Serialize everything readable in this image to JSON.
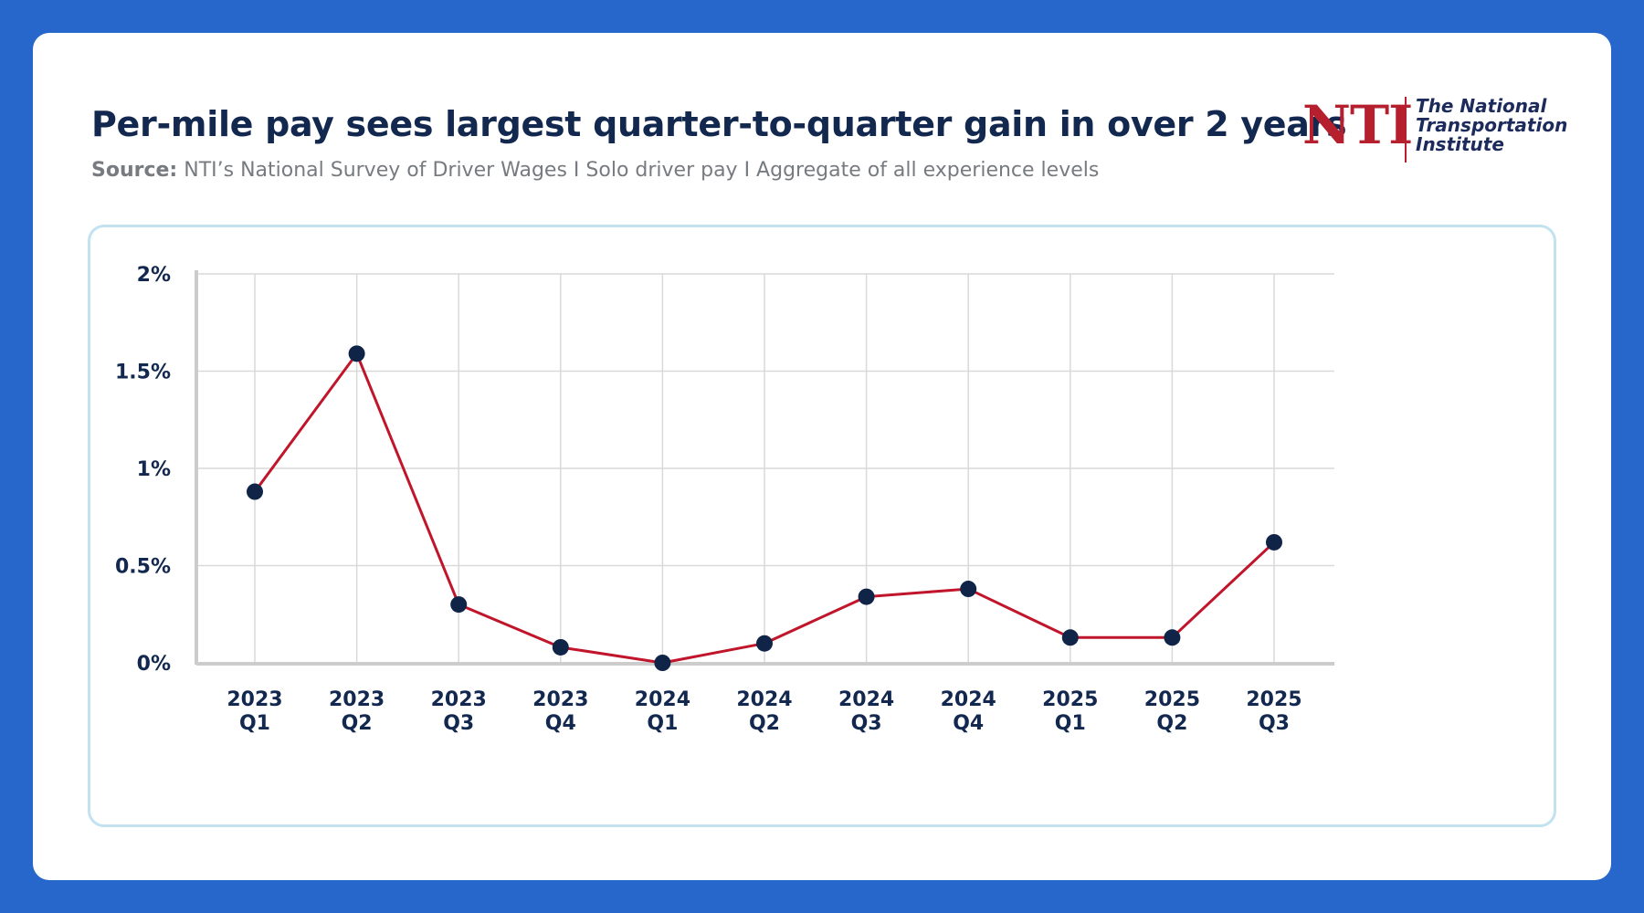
{
  "header": {
    "title": "Per-mile pay sees largest quarter-to-quarter gain in over 2 years",
    "source_label": "Source:",
    "source_text": "NTI’s National Survey of Driver Wages I Solo driver pay I Aggregate of all experience levels"
  },
  "logo": {
    "mark": "NTI",
    "line1": "The National",
    "line2": "Transportation",
    "line3": "Institute"
  },
  "colors": {
    "background": "#2767cc",
    "line": "#c0152a",
    "marker": "#0f2447",
    "grid": "#d9d9d9",
    "panel_border": "#c3e2f0"
  },
  "chart_data": {
    "type": "line",
    "title": "Per-mile pay sees largest quarter-to-quarter gain in over 2 years",
    "xlabel": "",
    "ylabel": "",
    "categories": [
      [
        "2023",
        "Q1"
      ],
      [
        "2023",
        "Q2"
      ],
      [
        "2023",
        "Q3"
      ],
      [
        "2023",
        "Q4"
      ],
      [
        "2024",
        "Q1"
      ],
      [
        "2024",
        "Q2"
      ],
      [
        "2024",
        "Q3"
      ],
      [
        "2024",
        "Q4"
      ],
      [
        "2025",
        "Q1"
      ],
      [
        "2025",
        "Q2"
      ],
      [
        "2025",
        "Q3"
      ]
    ],
    "values": [
      0.88,
      1.59,
      0.3,
      0.08,
      0.0,
      0.1,
      0.34,
      0.38,
      0.13,
      0.13,
      0.62
    ],
    "ylim": [
      0,
      2
    ],
    "yticks": [
      0,
      0.5,
      1,
      1.5,
      2
    ],
    "ytick_labels": [
      "0%",
      "0.5%",
      "1%",
      "1.5%",
      "2%"
    ],
    "grid": true,
    "legend": "none"
  }
}
